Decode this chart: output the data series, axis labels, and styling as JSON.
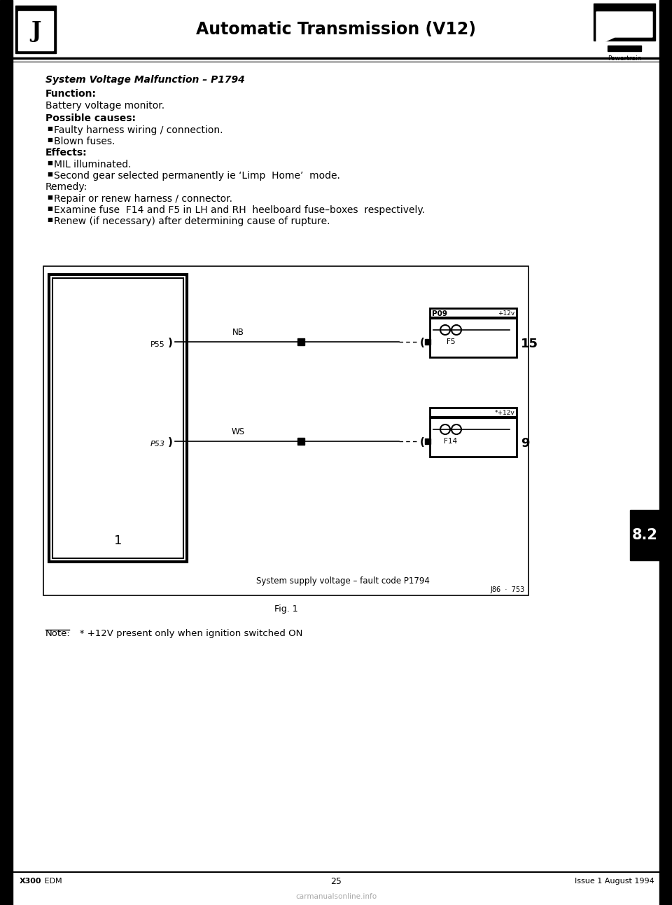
{
  "page_bg": "#ffffff",
  "title": "Automatic Transmission (V12)",
  "section_label": "Powertrain",
  "footer_left_bold": "X300",
  "footer_left_normal": " EDM",
  "footer_center": "25",
  "footer_right": "Issue 1 August 1994",
  "tab_label": "8.2",
  "tab_bg": "#000000",
  "tab_text": "#ffffff",
  "section_title_part1": "System Voltage Malfunction",
  "section_title_sep": " – ",
  "section_title_part2": "P1794",
  "function_label": "Function:",
  "function_text": "Battery voltage monitor.",
  "possible_causes_label": "Possible causes:",
  "possible_causes_bullets": [
    "Faulty harness wiring / connection.",
    "Blown fuses."
  ],
  "effects_label": "Effects:",
  "effects_bullets": [
    "MIL illuminated.",
    "Second gear selected permanently ie ‘Limp  Home’  mode."
  ],
  "remedy_label": "Remedy:",
  "remedy_bullets": [
    "Repair or renew harness / connector.",
    "Examine fuse  F14 and F5 in LH and RH  heelboard fuse–boxes  respectively.",
    "Renew (if necessary) after determining cause of rupture."
  ],
  "note_underline": "Note:",
  "note_rest": "   * +12V present only when ignition switched ON",
  "diagram_caption": "System supply voltage – fault code P1794",
  "diagram_ref": "J86  ·  753",
  "fig_label": "Fig. 1",
  "wire1_label": "NB",
  "wire2_label": "WS",
  "connector1_label": "P55",
  "connector2_label": "P53",
  "fuse_box1_header": "P09",
  "fuse_box1_fuse": "F5",
  "fuse_box1_voltage": "+12v",
  "fuse_box1_num": "15",
  "fuse_box2_fuse": "F14",
  "fuse_box2_voltage": "*+12v",
  "fuse_box2_num": "9",
  "ecm_box_label": "1",
  "watermark": "carmanualsonline.info"
}
